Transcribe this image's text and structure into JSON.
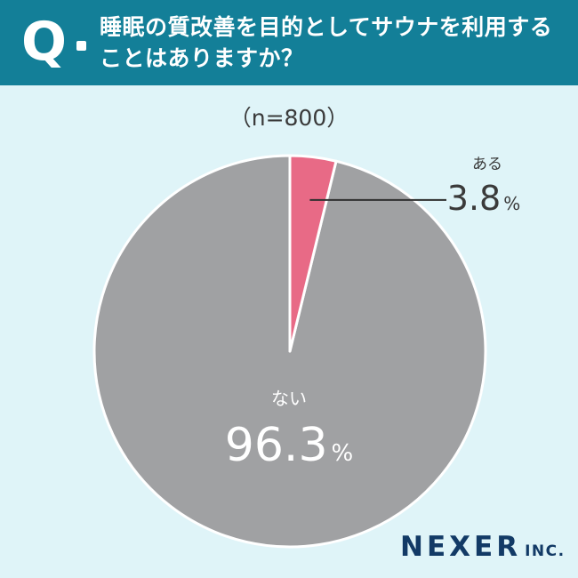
{
  "header": {
    "q_mark": "Q",
    "question": "睡眠の質改善を目的としてサウナを利用することはありますか？"
  },
  "sample": "（n=800）",
  "logo": {
    "main": "NEXER",
    "sub": "INC."
  },
  "colors": {
    "header_bg": "#137f98",
    "page_bg": "#dff4f8",
    "yes": "#e86a86",
    "no": "#a0a1a3",
    "text": "#3a3a3a"
  },
  "chart_data": {
    "type": "pie",
    "title": "睡眠の質改善を目的としてサウナを利用することはありますか？",
    "n": 800,
    "slices": [
      {
        "label": "ある",
        "value": 3.8,
        "display": "3.8",
        "unit": "%",
        "color": "#e86a86"
      },
      {
        "label": "ない",
        "value": 96.3,
        "display": "96.3",
        "unit": "%",
        "color": "#a0a1a3"
      }
    ]
  }
}
